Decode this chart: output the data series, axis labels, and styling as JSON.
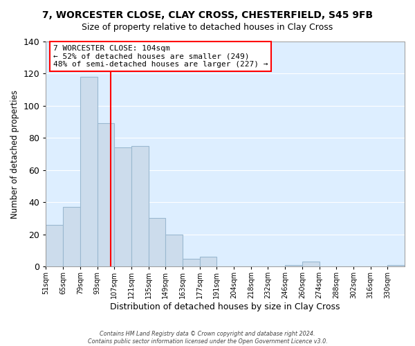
{
  "title": "7, WORCESTER CLOSE, CLAY CROSS, CHESTERFIELD, S45 9FB",
  "subtitle": "Size of property relative to detached houses in Clay Cross",
  "xlabel": "Distribution of detached houses by size in Clay Cross",
  "ylabel": "Number of detached properties",
  "bar_color": "#ccdcec",
  "bar_edge_color": "#9ab8d0",
  "plot_bg_color": "#ddeeff",
  "background_color": "#ffffff",
  "grid_color": "#ffffff",
  "tick_labels": [
    "51sqm",
    "65sqm",
    "79sqm",
    "93sqm",
    "107sqm",
    "121sqm",
    "135sqm",
    "149sqm",
    "163sqm",
    "177sqm",
    "191sqm",
    "204sqm",
    "218sqm",
    "232sqm",
    "246sqm",
    "260sqm",
    "274sqm",
    "288sqm",
    "302sqm",
    "316sqm",
    "330sqm"
  ],
  "bar_heights": [
    26,
    37,
    118,
    89,
    74,
    75,
    30,
    20,
    5,
    6,
    0,
    0,
    0,
    0,
    1,
    3,
    0,
    0,
    0,
    0,
    1
  ],
  "property_line_label": "7 WORCESTER CLOSE: 104sqm",
  "annotation_line1": "← 52% of detached houses are smaller (249)",
  "annotation_line2": "48% of semi-detached houses are larger (227) →",
  "ylim": [
    0,
    140
  ],
  "yticks": [
    0,
    20,
    40,
    60,
    80,
    100,
    120,
    140
  ],
  "footer1": "Contains HM Land Registry data © Crown copyright and database right 2024.",
  "footer2": "Contains public sector information licensed under the Open Government Licence v3.0."
}
